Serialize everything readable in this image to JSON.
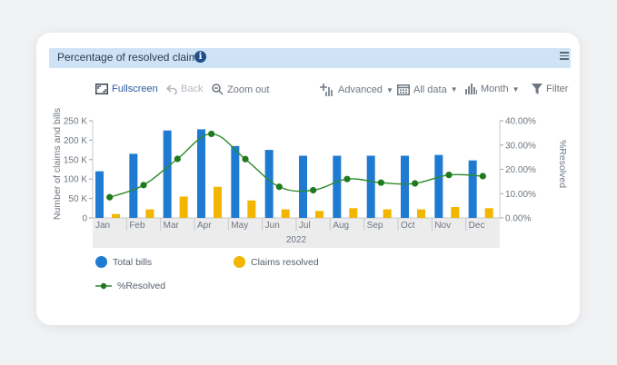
{
  "panel": {
    "title": "Percentage of resolved claims",
    "info_glyph": "i"
  },
  "toolbar": {
    "fullscreen": "Fullscreen",
    "back": "Back",
    "zoom_out": "Zoom out",
    "advanced": "Advanced",
    "all_data": "All data",
    "month": "Month",
    "filter": "Filter"
  },
  "colors": {
    "bills": "#1f7ad1",
    "claims": "#f2b600",
    "resolved": "#2e8b2e"
  },
  "chart_data": {
    "type": "bar",
    "categories": [
      "Jan",
      "Feb",
      "Mar",
      "Apr",
      "May",
      "Jun",
      "Jul",
      "Aug",
      "Sep",
      "Oct",
      "Nov",
      "Dec"
    ],
    "xlabel": "2022",
    "ylabel": "Number of claims and bills",
    "y2label": "%Resolved",
    "ylim": [
      0,
      250000
    ],
    "y2lim": [
      0,
      40
    ],
    "yticks": [
      "0",
      "50 K",
      "100 K",
      "150 K",
      "200 K",
      "250 K"
    ],
    "y2ticks": [
      "0.00%",
      "10.00%",
      "20.00%",
      "30.00%",
      "40.00%"
    ],
    "series": [
      {
        "name": "Total bills",
        "type": "bar",
        "axis": "left",
        "values": [
          120000,
          165000,
          225000,
          228000,
          185000,
          175000,
          160000,
          160000,
          160000,
          160000,
          162000,
          148000
        ]
      },
      {
        "name": "Claims resolved",
        "type": "bar",
        "axis": "left",
        "values": [
          10000,
          22000,
          55000,
          80000,
          45000,
          22000,
          18000,
          25000,
          22000,
          22000,
          28000,
          25000
        ]
      },
      {
        "name": "%Resolved",
        "type": "line",
        "axis": "right",
        "values": [
          8.5,
          13.5,
          24.3,
          34.6,
          24.2,
          12.8,
          11.4,
          16,
          14.5,
          14.2,
          17.7,
          17.2
        ]
      }
    ],
    "legend": [
      "Total bills",
      "Claims resolved",
      "%Resolved"
    ],
    "legend_position": "bottom-left",
    "grid": false
  }
}
